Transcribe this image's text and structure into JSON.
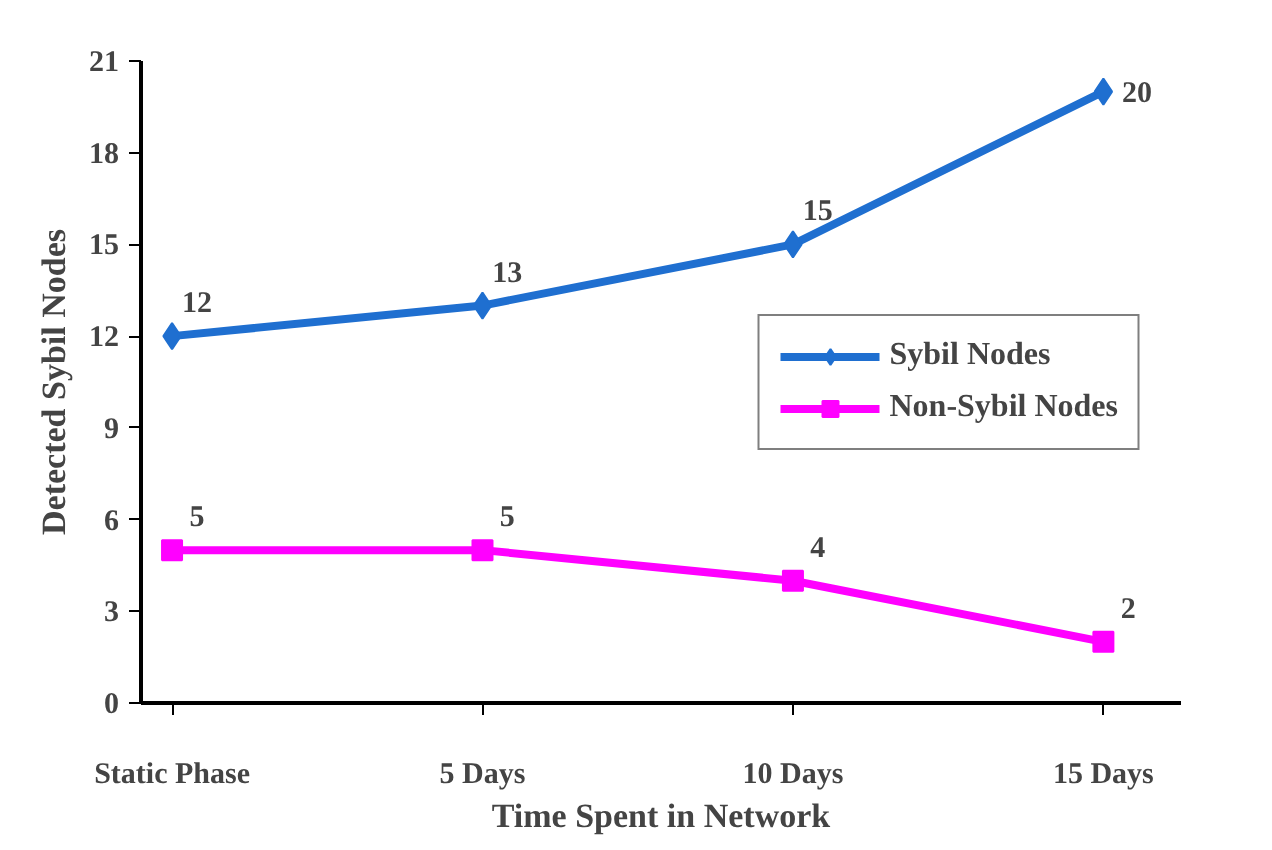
{
  "chart_data": {
    "type": "line",
    "xlabel": "Time Spent in Network",
    "ylabel": "Detected Sybil Nodes",
    "categories": [
      "Static Phase",
      "5 Days",
      "10 Days",
      "15 Days"
    ],
    "series": [
      {
        "name": "Sybil Nodes",
        "color": "#1f6fd0",
        "marker": "diamond",
        "values": [
          12,
          13,
          15,
          20
        ]
      },
      {
        "name": "Non-Sybil Nodes",
        "color": "#ff00ff",
        "marker": "square",
        "values": [
          5,
          5,
          4,
          2
        ]
      }
    ],
    "ylim": [
      0,
      21
    ],
    "yticks": [
      0,
      3,
      6,
      9,
      12,
      15,
      18,
      21
    ],
    "grid": false,
    "legend": "right",
    "data_labels": true
  }
}
